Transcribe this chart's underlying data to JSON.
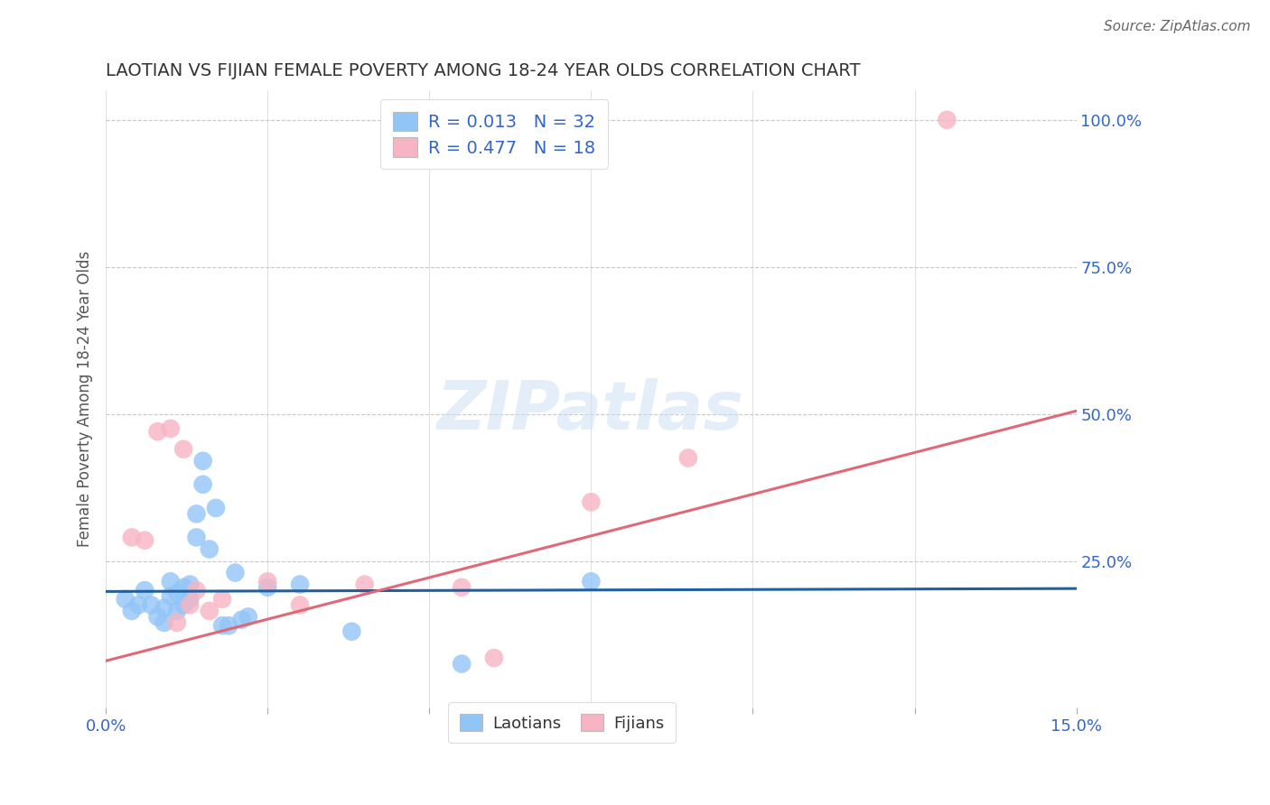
{
  "title": "LAOTIAN VS FIJIAN FEMALE POVERTY AMONG 18-24 YEAR OLDS CORRELATION CHART",
  "source": "Source: ZipAtlas.com",
  "ylabel": "Female Poverty Among 18-24 Year Olds",
  "xlim": [
    0.0,
    0.15
  ],
  "ylim": [
    0.0,
    1.05
  ],
  "xticks": [
    0.0,
    0.025,
    0.05,
    0.075,
    0.1,
    0.125,
    0.15
  ],
  "xticklabels": [
    "0.0%",
    "",
    "",
    "",
    "",
    "",
    "15.0%"
  ],
  "yticks_right": [
    0.25,
    0.5,
    0.75,
    1.0
  ],
  "ytick_labels_right": [
    "25.0%",
    "50.0%",
    "75.0%",
    "100.0%"
  ],
  "background_color": "#ffffff",
  "grid_color": "#c8c8c8",
  "watermark": "ZIPatlas",
  "laotian_color": "#92c5f7",
  "fijian_color": "#f7b4c2",
  "laotian_line_color": "#2060a0",
  "fijian_line_color": "#e06878",
  "laotian_R": 0.013,
  "laotian_N": 32,
  "fijian_R": 0.477,
  "fijian_N": 18,
  "legend_text_color": "#3366cc",
  "laotian_line_y0": 0.198,
  "laotian_line_y1": 0.203,
  "fijian_line_y0": 0.08,
  "fijian_line_y1": 0.505,
  "laotian_x": [
    0.003,
    0.004,
    0.005,
    0.006,
    0.007,
    0.008,
    0.009,
    0.009,
    0.01,
    0.01,
    0.011,
    0.011,
    0.012,
    0.012,
    0.013,
    0.013,
    0.014,
    0.014,
    0.015,
    0.015,
    0.016,
    0.017,
    0.018,
    0.019,
    0.02,
    0.021,
    0.022,
    0.025,
    0.03,
    0.038,
    0.055,
    0.075
  ],
  "laotian_y": [
    0.185,
    0.165,
    0.175,
    0.2,
    0.175,
    0.155,
    0.17,
    0.145,
    0.215,
    0.19,
    0.195,
    0.165,
    0.205,
    0.175,
    0.21,
    0.185,
    0.33,
    0.29,
    0.38,
    0.42,
    0.27,
    0.34,
    0.14,
    0.14,
    0.23,
    0.15,
    0.155,
    0.205,
    0.21,
    0.13,
    0.075,
    0.215
  ],
  "fijian_x": [
    0.004,
    0.006,
    0.008,
    0.01,
    0.011,
    0.012,
    0.013,
    0.014,
    0.016,
    0.018,
    0.025,
    0.03,
    0.04,
    0.055,
    0.06,
    0.075,
    0.09,
    0.13
  ],
  "fijian_y": [
    0.29,
    0.285,
    0.47,
    0.475,
    0.145,
    0.44,
    0.175,
    0.2,
    0.165,
    0.185,
    0.215,
    0.175,
    0.21,
    0.205,
    0.085,
    0.35,
    0.425,
    1.0
  ],
  "laotian_legend": "Laotians",
  "fijian_legend": "Fijians"
}
